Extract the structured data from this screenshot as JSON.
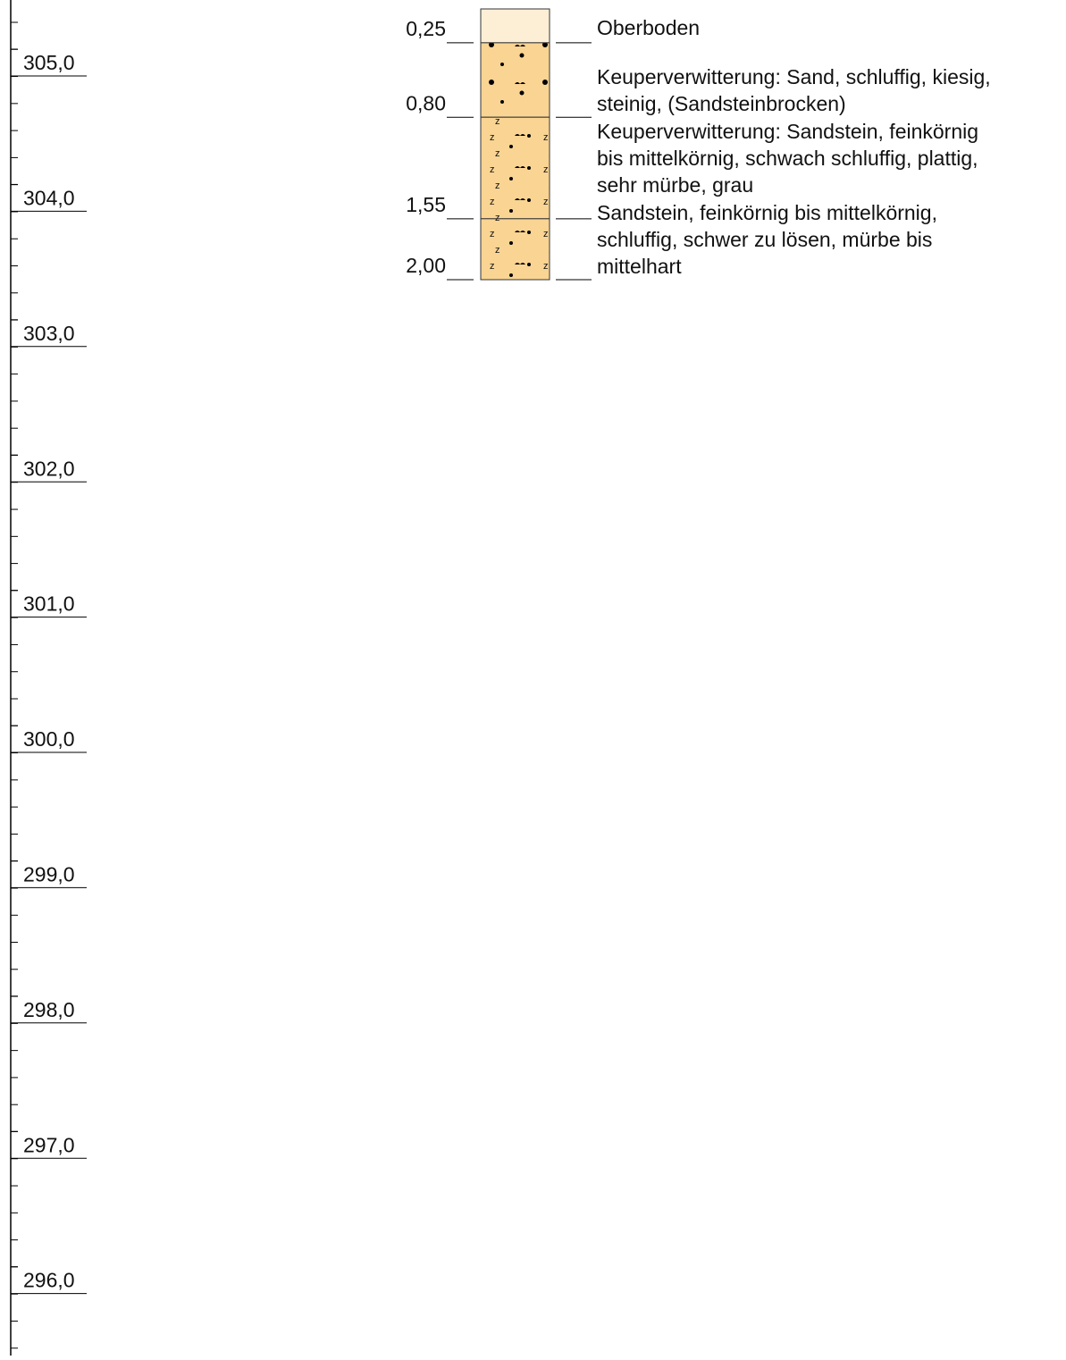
{
  "elevation_axis": {
    "labels": [
      "305,0",
      "304,0",
      "303,0",
      "302,0",
      "301,0",
      "300,0",
      "299,0",
      "298,0",
      "297,0",
      "296,0"
    ]
  },
  "layers": [
    {
      "depth": "0,25",
      "description": [
        "Oberboden"
      ]
    },
    {
      "depth": "0,80",
      "description": [
        "Keuperverwitterung: Sand, schluffig, kiesig,",
        "steinig, (Sandsteinbrocken)"
      ]
    },
    {
      "depth": "1,55",
      "description": [
        "Keuperverwitterung: Sandstein, feinkörnig",
        "bis mittelkörnig, schwach schluffig, plattig,",
        "sehr mürbe, grau"
      ]
    },
    {
      "depth": "2,00",
      "description": [
        "Sandstein, feinkörnig bis mittelkörnig,",
        "schluffig, schwer zu lösen, mürbe bis",
        "mittelhart"
      ]
    }
  ]
}
